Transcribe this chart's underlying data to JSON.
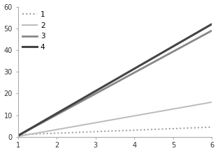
{
  "x": [
    1,
    6
  ],
  "lines": [
    {
      "label": "1",
      "y": [
        1.0,
        4.5
      ],
      "color": "#999999",
      "linestyle": "dotted",
      "linewidth": 1.4,
      "dashes": null
    },
    {
      "label": "2",
      "y": [
        0.2,
        16.0
      ],
      "color": "#bbbbbb",
      "linestyle": "solid",
      "linewidth": 1.4
    },
    {
      "label": "3",
      "y": [
        0.5,
        49.0
      ],
      "color": "#888888",
      "linestyle": "solid",
      "linewidth": 2.0
    },
    {
      "label": "4",
      "y": [
        0.5,
        52.0
      ],
      "color": "#444444",
      "linestyle": "solid",
      "linewidth": 2.2
    }
  ],
  "xlim": [
    1,
    6
  ],
  "ylim": [
    0,
    60
  ],
  "xticks": [
    1,
    2,
    3,
    4,
    5,
    6
  ],
  "yticks": [
    0,
    10,
    20,
    30,
    40,
    50,
    60
  ],
  "background_color": "#ffffff",
  "tick_fontsize": 7,
  "legend_fontsize": 7.5
}
